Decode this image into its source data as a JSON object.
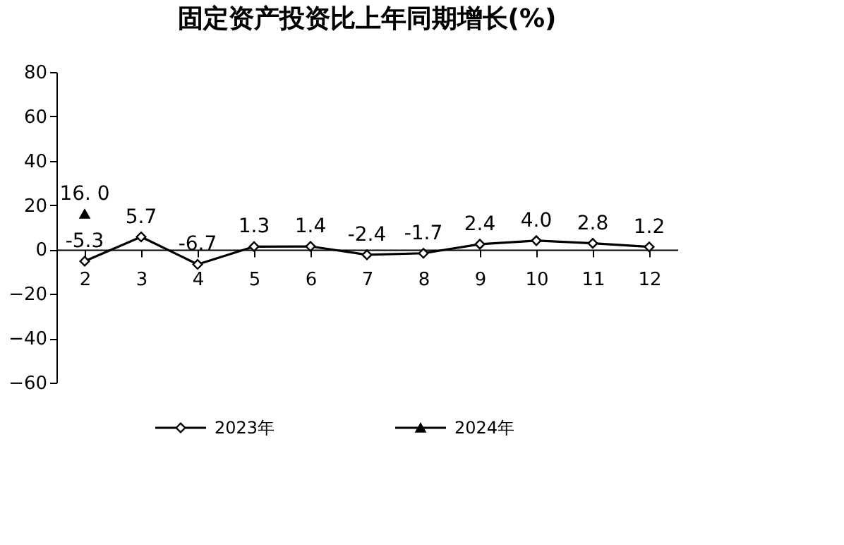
{
  "chart_data": {
    "type": "line",
    "title": "固定资产投资比上年同期增长(%)",
    "categories": [
      "2",
      "3",
      "4",
      "5",
      "6",
      "7",
      "8",
      "9",
      "10",
      "11",
      "12"
    ],
    "series": [
      {
        "name": "2023年",
        "color": "#000000",
        "marker": "diamond",
        "values": [
          -5.3,
          5.7,
          -6.7,
          1.3,
          1.4,
          -2.4,
          -1.7,
          2.4,
          4.0,
          2.8,
          1.2
        ],
        "value_labels": [
          "-5.3",
          "5.7",
          "-6.7",
          "1.3",
          "1.4",
          "-2.4",
          "-1.7",
          "2.4",
          "4.0",
          "2.8",
          "1.2"
        ]
      },
      {
        "name": "2024年",
        "color": "#000000",
        "marker": "triangle",
        "values": [
          16.0,
          null,
          null,
          null,
          null,
          null,
          null,
          null,
          null,
          null,
          null
        ],
        "value_labels": [
          "16. 0",
          null,
          null,
          null,
          null,
          null,
          null,
          null,
          null,
          null,
          null
        ]
      }
    ],
    "ylim": [
      -60,
      80
    ],
    "yticks": [
      -60,
      -40,
      -20,
      0,
      20,
      40,
      60,
      80
    ],
    "grid": false,
    "legend": "bottom"
  }
}
